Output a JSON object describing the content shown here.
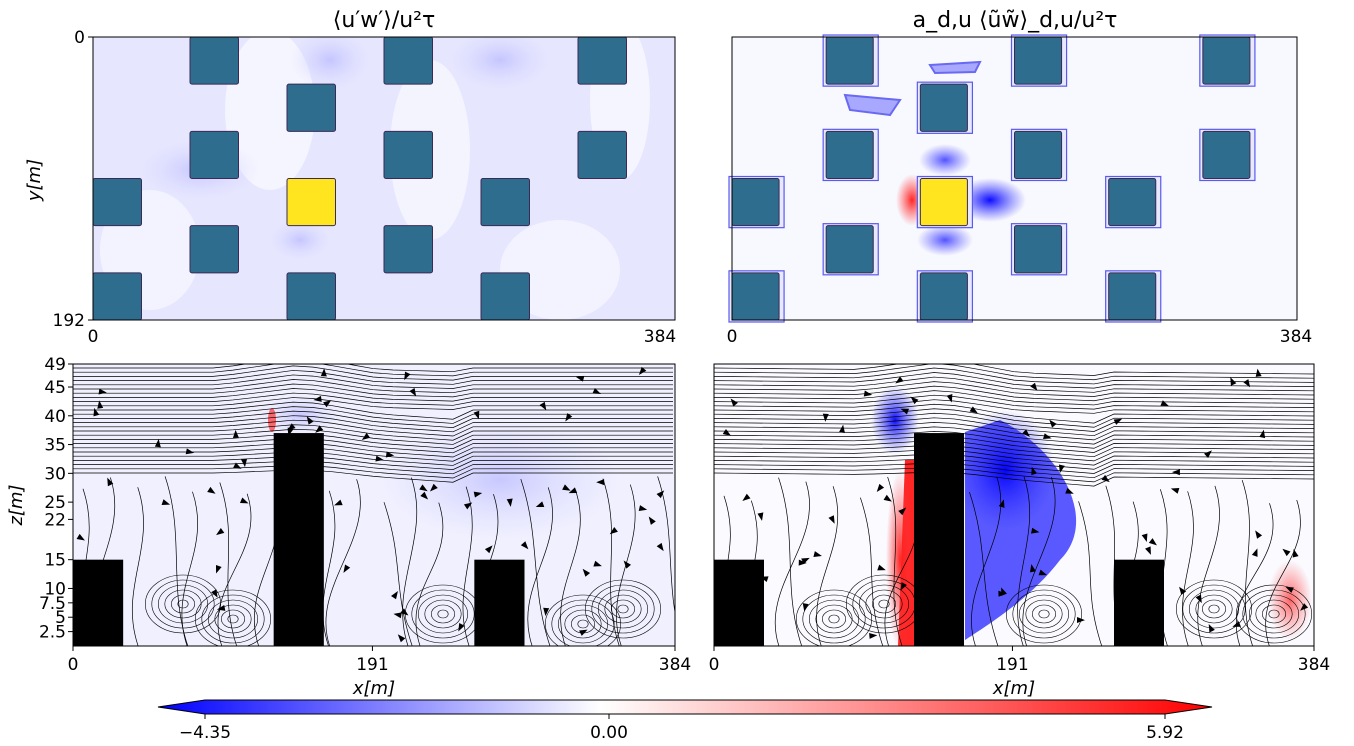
{
  "titles": {
    "top_left": "⟨u′w′⟩/u²τ",
    "top_right": "a_d,u ⟨ũw̃⟩_d,u/u²τ"
  },
  "axis_labels": {
    "y_top": "y[m]",
    "z_bottom": "z[m]",
    "x_bottom_left": "x[m]",
    "x_bottom_right": "x[m]"
  },
  "colors": {
    "building": "#2e6d8e",
    "target_building": "#ffe51f",
    "side_building": "#000000",
    "negative": "#0000ff",
    "zero": "#ffffff",
    "positive": "#ff0000",
    "contour": "#5a5af0"
  },
  "colorbar": {
    "min_label": "−4.35",
    "mid_label": "0.00",
    "max_label": "5.92"
  },
  "chart_data": [
    {
      "type": "heatmap",
      "name": "plan-view-reynolds-stress",
      "title": "⟨u′w′⟩/u²τ",
      "xlabel": "",
      "ylabel": "y[m]",
      "xlim": [
        0,
        384
      ],
      "ylim": [
        192,
        0
      ],
      "xticks": [
        "0",
        "384"
      ],
      "yticks": [
        "0",
        "192"
      ],
      "buildings": [
        {
          "x0": 64,
          "x1": 96,
          "y0": 0,
          "y1": 32
        },
        {
          "x0": 192,
          "x1": 224,
          "y0": 0,
          "y1": 32
        },
        {
          "x0": 320,
          "x1": 352,
          "y0": 0,
          "y1": 32
        },
        {
          "x0": 128,
          "x1": 160,
          "y0": 32,
          "y1": 64
        },
        {
          "x0": 64,
          "x1": 96,
          "y0": 64,
          "y1": 96
        },
        {
          "x0": 192,
          "x1": 224,
          "y0": 64,
          "y1": 96
        },
        {
          "x0": 320,
          "x1": 352,
          "y0": 64,
          "y1": 96
        },
        {
          "x0": 0,
          "x1": 32,
          "y0": 96,
          "y1": 128
        },
        {
          "x0": 256,
          "x1": 288,
          "y0": 96,
          "y1": 128
        },
        {
          "x0": 64,
          "x1": 96,
          "y0": 128,
          "y1": 160
        },
        {
          "x0": 192,
          "x1": 224,
          "y0": 128,
          "y1": 160
        },
        {
          "x0": 0,
          "x1": 32,
          "y0": 160,
          "y1": 192
        },
        {
          "x0": 128,
          "x1": 160,
          "y0": 160,
          "y1": 192
        },
        {
          "x0": 256,
          "x1": 288,
          "y0": 160,
          "y1": 192
        }
      ],
      "target_building": {
        "x0": 128,
        "x1": 160,
        "y0": 96,
        "y1": 128
      }
    },
    {
      "type": "heatmap",
      "name": "plan-view-dispersive-stress",
      "title": "a_d,u ⟨ũw̃⟩_d,u/u²τ",
      "xlabel": "",
      "ylabel": "",
      "xlim": [
        0,
        384
      ],
      "ylim": [
        192,
        0
      ],
      "xticks": [
        "0",
        "384"
      ],
      "yticks": [],
      "same_building_layout": true
    },
    {
      "type": "heatmap",
      "name": "side-view-reynolds-stress-streamlines",
      "xlabel": "x[m]",
      "ylabel": "z[m]",
      "xlim": [
        0,
        384
      ],
      "ylim": [
        0,
        49
      ],
      "xticks": [
        "0",
        "191",
        "384"
      ],
      "yticks": [
        "2.5",
        "5",
        "7.5",
        "10",
        "15",
        "22",
        "25",
        "30",
        "35",
        "40",
        "45",
        "49"
      ],
      "buildings": [
        {
          "x0": 0,
          "x1": 32,
          "height": 15
        },
        {
          "x0": 128,
          "x1": 160,
          "height": 37
        },
        {
          "x0": 256,
          "x1": 288,
          "height": 15
        }
      ]
    },
    {
      "type": "heatmap",
      "name": "side-view-dispersive-stress-streamlines",
      "xlabel": "x[m]",
      "ylabel": "",
      "xlim": [
        0,
        384
      ],
      "ylim": [
        0,
        49
      ],
      "xticks": [
        "0",
        "191",
        "384"
      ],
      "yticks": [],
      "buildings": [
        {
          "x0": 0,
          "x1": 32,
          "height": 15
        },
        {
          "x0": 128,
          "x1": 160,
          "height": 37
        },
        {
          "x0": 256,
          "x1": 288,
          "height": 15
        }
      ]
    }
  ],
  "colorbar_scale": {
    "min": -4.35,
    "max": 5.92
  }
}
